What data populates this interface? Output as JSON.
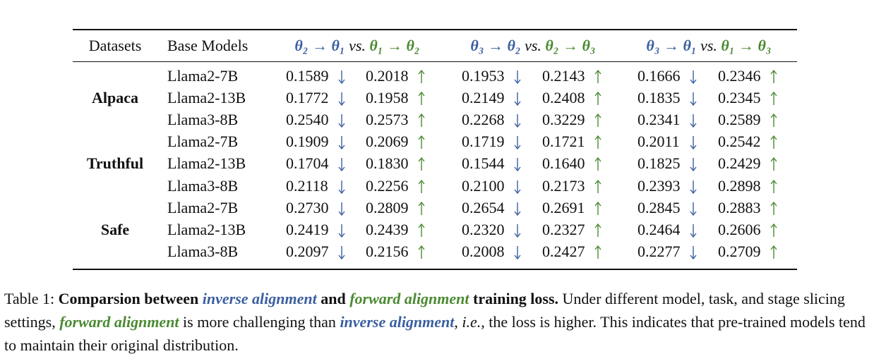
{
  "table": {
    "header": {
      "dataset": "Datasets",
      "model": "Base Models",
      "pairs": [
        {
          "inverse": "θ₂ → θ₁",
          "sep": "vs.",
          "forward": "θ₁ → θ₂"
        },
        {
          "inverse": "θ₃ → θ₂",
          "sep": "vs.",
          "forward": "θ₂ → θ₃"
        },
        {
          "inverse": "θ₃ → θ₁",
          "sep": "vs.",
          "forward": "θ₁ → θ₃"
        }
      ]
    },
    "groups": [
      {
        "dataset": "Alpaca",
        "rows": [
          {
            "model": "Llama2-7B",
            "values": [
              "0.1589",
              "0.2018",
              "0.1953",
              "0.2143",
              "0.1666",
              "0.2346"
            ]
          },
          {
            "model": "Llama2-13B",
            "values": [
              "0.1772",
              "0.1958",
              "0.2149",
              "0.2408",
              "0.1835",
              "0.2345"
            ]
          },
          {
            "model": "Llama3-8B",
            "values": [
              "0.2540",
              "0.2573",
              "0.2268",
              "0.3229",
              "0.2341",
              "0.2589"
            ]
          }
        ]
      },
      {
        "dataset": "Truthful",
        "rows": [
          {
            "model": "Llama2-7B",
            "values": [
              "0.1909",
              "0.2069",
              "0.1719",
              "0.1721",
              "0.2011",
              "0.2542"
            ]
          },
          {
            "model": "Llama2-13B",
            "values": [
              "0.1704",
              "0.1830",
              "0.1544",
              "0.1640",
              "0.1825",
              "0.2429"
            ]
          },
          {
            "model": "Llama3-8B",
            "values": [
              "0.2118",
              "0.2256",
              "0.2100",
              "0.2173",
              "0.2393",
              "0.2898"
            ]
          }
        ]
      },
      {
        "dataset": "Safe",
        "rows": [
          {
            "model": "Llama2-7B",
            "values": [
              "0.2730",
              "0.2809",
              "0.2654",
              "0.2691",
              "0.2845",
              "0.2883"
            ]
          },
          {
            "model": "Llama2-13B",
            "values": [
              "0.2419",
              "0.2439",
              "0.2320",
              "0.2327",
              "0.2464",
              "0.2606"
            ]
          },
          {
            "model": "Llama3-8B",
            "values": [
              "0.2097",
              "0.2156",
              "0.2008",
              "0.2427",
              "0.2277",
              "0.2709"
            ]
          }
        ]
      }
    ]
  },
  "caption": {
    "label": "Table 1:",
    "parts": [
      "Comparsion between",
      "inverse alignment",
      "and",
      "forward alignment",
      "training loss.",
      "Under different model, task, and stage slicing settings,",
      "forward alignment",
      "is more challenging than",
      "inverse alignment",
      ",",
      "i.e.,",
      "the loss is higher. This indicates that pre-trained models tend to maintain their original distribution."
    ]
  }
}
